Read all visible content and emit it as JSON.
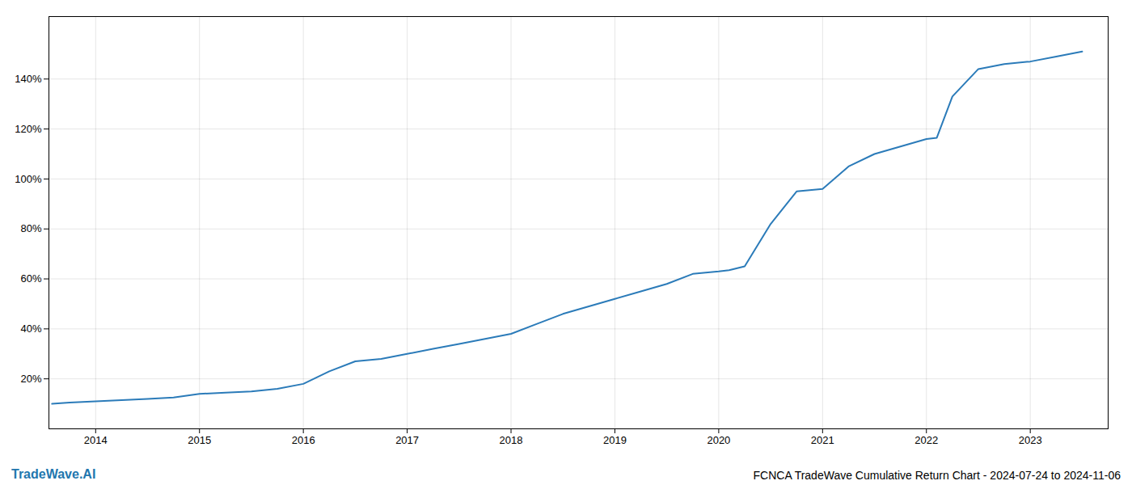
{
  "chart_data": {
    "type": "line",
    "title": "FCNCA TradeWave Cumulative Return Chart - 2024-07-24 to 2024-11-06",
    "annotations": [
      {
        "text": "TradeWave.AI",
        "color": "#2176ae"
      }
    ],
    "x": [
      2013.58,
      2013.75,
      2014.0,
      2014.25,
      2014.5,
      2014.75,
      2015.0,
      2015.25,
      2015.5,
      2015.75,
      2016.0,
      2016.25,
      2016.5,
      2016.75,
      2017.0,
      2017.25,
      2017.5,
      2017.75,
      2018.0,
      2018.25,
      2018.5,
      2018.75,
      2019.0,
      2019.25,
      2019.5,
      2019.75,
      2020.0,
      2020.1,
      2020.25,
      2020.5,
      2020.75,
      2021.0,
      2021.25,
      2021.5,
      2021.75,
      2022.0,
      2022.1,
      2022.25,
      2022.5,
      2022.75,
      2023.0,
      2023.25,
      2023.5
    ],
    "values": [
      10,
      10.5,
      11,
      11.5,
      12,
      12.5,
      14,
      14.5,
      15,
      16,
      18,
      23,
      27,
      28,
      30,
      32,
      34,
      36,
      38,
      42,
      46,
      49,
      52,
      55,
      58,
      62,
      63,
      63.5,
      65,
      82,
      95,
      96,
      105,
      110,
      113,
      116,
      116.5,
      133,
      144,
      146,
      147,
      149,
      151
    ],
    "color": "#2b7bb9",
    "xlim": [
      2013.55,
      2023.75
    ],
    "ylim": [
      0,
      165
    ],
    "xticks": [
      2014,
      2015,
      2016,
      2017,
      2018,
      2019,
      2020,
      2021,
      2022,
      2023
    ],
    "yticks": [
      {
        "value": 20,
        "label": "20%"
      },
      {
        "value": 40,
        "label": "40%"
      },
      {
        "value": 60,
        "label": "60%"
      },
      {
        "value": 80,
        "label": "80%"
      },
      {
        "value": 100,
        "label": "100%"
      },
      {
        "value": 120,
        "label": "120%"
      },
      {
        "value": 140,
        "label": "140%"
      }
    ],
    "grid": true
  }
}
